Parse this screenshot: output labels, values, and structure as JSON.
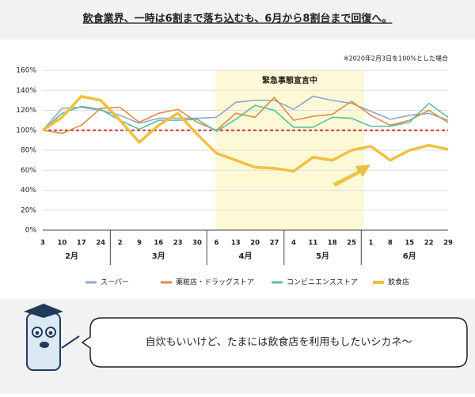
{
  "chart_data": {
    "type": "line",
    "title": "飲食業界、一時は6割まで落ち込むも、6月から8割台まで回復へ。",
    "note": "※2020年2月3日を100%とした場合",
    "annotation": "緊急事態宣言中",
    "categories": [
      "3",
      "10",
      "17",
      "24",
      "2",
      "9",
      "16",
      "23",
      "30",
      "6",
      "13",
      "20",
      "27",
      "4",
      "11",
      "18",
      "25",
      "1",
      "8",
      "15",
      "22",
      "29"
    ],
    "month_labels": [
      "2月",
      "3月",
      "4月",
      "5月",
      "6月"
    ],
    "ylim": [
      0,
      160
    ],
    "yticks": [
      {
        "value": 0,
        "label": "0%"
      },
      {
        "value": 20,
        "label": "20%"
      },
      {
        "value": 40,
        "label": "40%"
      },
      {
        "value": 60,
        "label": "60%"
      },
      {
        "value": 80,
        "label": "80%"
      },
      {
        "value": 100,
        "label": "100%"
      },
      {
        "value": 120,
        "label": "120%"
      },
      {
        "value": 140,
        "label": "140%"
      },
      {
        "value": 160,
        "label": "160%"
      }
    ],
    "grid": true,
    "reference_line": 100,
    "series": [
      {
        "name": "スーパー",
        "color": "#8fa6cf",
        "values": [
          100,
          122,
          123,
          120,
          115,
          107,
          112,
          112,
          112,
          113,
          128,
          130,
          130,
          121,
          134,
          130,
          127,
          119,
          111,
          115,
          117,
          110
        ]
      },
      {
        "name": "薬粧店・ドラッグストア",
        "color": "#e08b45",
        "values": [
          100,
          97,
          105,
          122,
          123,
          108,
          117,
          121,
          108,
          100,
          117,
          113,
          133,
          110,
          114,
          116,
          129,
          115,
          105,
          110,
          120,
          108
        ]
      },
      {
        "name": "コンビニエンスストア",
        "color": "#5fbf9b",
        "values": [
          100,
          117,
          124,
          121,
          110,
          101,
          110,
          110,
          111,
          99,
          111,
          125,
          120,
          103,
          103,
          113,
          112,
          104,
          104,
          108,
          127,
          113
        ]
      },
      {
        "name": "飲食店",
        "color": "#f0c040",
        "values": [
          100,
          113,
          134,
          130,
          110,
          88,
          105,
          117,
          96,
          77,
          70,
          63,
          62,
          59,
          73,
          70,
          80,
          84,
          70,
          80,
          85,
          81
        ]
      }
    ]
  },
  "bubble_text": "自炊もいいけど、たまには飲食店を利用もしたいシカネ〜"
}
